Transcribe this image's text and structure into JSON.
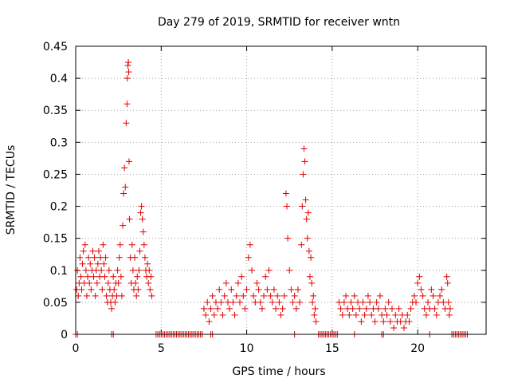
{
  "chart_data": {
    "type": "scatter",
    "title": "Day 279 of 2019, SRMTID for receiver wntn",
    "xlabel": "GPS time / hours",
    "ylabel": "SRMTID / TECUs",
    "xlim": [
      0,
      24
    ],
    "ylim": [
      0,
      0.45
    ],
    "xticks": [
      0,
      5,
      10,
      15,
      20
    ],
    "xtick_labels": [
      "0",
      "5",
      "10",
      "15",
      "20"
    ],
    "yticks": [
      0,
      0.05,
      0.1,
      0.15,
      0.2,
      0.25,
      0.3,
      0.35,
      0.4,
      0.45
    ],
    "ytick_labels": [
      "0",
      "0.05",
      "0.1",
      "0.15",
      "0.2",
      "0.25",
      "0.3",
      "0.35",
      "0.4",
      "0.45"
    ],
    "grid": true,
    "marker": "plus",
    "marker_color": "#e00000",
    "series": [
      {
        "name": "SRMTID",
        "points": [
          [
            0.05,
            0.07
          ],
          [
            0.1,
            0.1
          ],
          [
            0.15,
            0.06
          ],
          [
            0.2,
            0.08
          ],
          [
            0.25,
            0.12
          ],
          [
            0.3,
            0.09
          ],
          [
            0.35,
            0.07
          ],
          [
            0.4,
            0.11
          ],
          [
            0.45,
            0.13
          ],
          [
            0.5,
            0.08
          ],
          [
            0.55,
            0.14
          ],
          [
            0.6,
            0.1
          ],
          [
            0.65,
            0.06
          ],
          [
            0.7,
            0.09
          ],
          [
            0.75,
            0.12
          ],
          [
            0.8,
            0.08
          ],
          [
            0.85,
            0.11
          ],
          [
            0.9,
            0.07
          ],
          [
            0.95,
            0.1
          ],
          [
            1.0,
            0.13
          ],
          [
            1.05,
            0.09
          ],
          [
            1.1,
            0.12
          ],
          [
            1.15,
            0.06
          ],
          [
            1.2,
            0.1
          ],
          [
            1.25,
            0.08
          ],
          [
            1.3,
            0.11
          ],
          [
            1.35,
            0.13
          ],
          [
            1.4,
            0.09
          ],
          [
            1.45,
            0.12
          ],
          [
            1.5,
            0.1
          ],
          [
            1.55,
            0.07
          ],
          [
            1.6,
            0.14
          ],
          [
            1.65,
            0.11
          ],
          [
            1.7,
            0.09
          ],
          [
            1.75,
            0.12
          ],
          [
            1.8,
            0.06
          ],
          [
            1.85,
            0.05
          ],
          [
            1.9,
            0.08
          ],
          [
            1.95,
            0.1
          ],
          [
            2.0,
            0.07
          ],
          [
            2.05,
            0.05
          ],
          [
            2.1,
            0.04
          ],
          [
            2.15,
            0.06
          ],
          [
            2.2,
            0.09
          ],
          [
            2.25,
            0.07
          ],
          [
            2.3,
            0.05
          ],
          [
            2.35,
            0.08
          ],
          [
            2.4,
            0.06
          ],
          [
            2.45,
            0.1
          ],
          [
            2.5,
            0.08
          ],
          [
            2.55,
            0.12
          ],
          [
            2.6,
            0.14
          ],
          [
            2.65,
            0.09
          ],
          [
            2.7,
            0.06
          ],
          [
            2.75,
            0.17
          ],
          [
            2.8,
            0.22
          ],
          [
            2.85,
            0.26
          ],
          [
            2.9,
            0.23
          ],
          [
            2.95,
            0.33
          ],
          [
            3.0,
            0.36
          ],
          [
            3.02,
            0.4
          ],
          [
            3.05,
            0.42
          ],
          [
            3.08,
            0.425
          ],
          [
            3.1,
            0.41
          ],
          [
            3.12,
            0.27
          ],
          [
            3.15,
            0.18
          ],
          [
            3.2,
            0.12
          ],
          [
            3.25,
            0.08
          ],
          [
            3.3,
            0.14
          ],
          [
            3.35,
            0.1
          ],
          [
            3.4,
            0.07
          ],
          [
            3.45,
            0.12
          ],
          [
            3.5,
            0.08
          ],
          [
            3.55,
            0.06
          ],
          [
            3.6,
            0.09
          ],
          [
            3.65,
            0.07
          ],
          [
            3.7,
            0.1
          ],
          [
            3.75,
            0.13
          ],
          [
            3.8,
            0.19
          ],
          [
            3.85,
            0.2
          ],
          [
            3.9,
            0.18
          ],
          [
            3.95,
            0.16
          ],
          [
            4.0,
            0.14
          ],
          [
            4.05,
            0.12
          ],
          [
            4.1,
            0.1
          ],
          [
            4.15,
            0.09
          ],
          [
            4.2,
            0.11
          ],
          [
            4.25,
            0.08
          ],
          [
            4.3,
            0.1
          ],
          [
            4.35,
            0.07
          ],
          [
            4.4,
            0.09
          ],
          [
            4.45,
            0.06
          ],
          [
            7.5,
            0.04
          ],
          [
            7.6,
            0.03
          ],
          [
            7.7,
            0.05
          ],
          [
            7.8,
            0.02
          ],
          [
            7.9,
            0.04
          ],
          [
            8.0,
            0.06
          ],
          [
            8.1,
            0.03
          ],
          [
            8.2,
            0.05
          ],
          [
            8.3,
            0.04
          ],
          [
            8.4,
            0.07
          ],
          [
            8.5,
            0.05
          ],
          [
            8.6,
            0.03
          ],
          [
            8.7,
            0.06
          ],
          [
            8.8,
            0.08
          ],
          [
            8.9,
            0.05
          ],
          [
            9.0,
            0.04
          ],
          [
            9.1,
            0.07
          ],
          [
            9.2,
            0.05
          ],
          [
            9.3,
            0.03
          ],
          [
            9.4,
            0.06
          ],
          [
            9.5,
            0.08
          ],
          [
            9.6,
            0.05
          ],
          [
            9.7,
            0.09
          ],
          [
            9.8,
            0.06
          ],
          [
            9.9,
            0.04
          ],
          [
            10.0,
            0.07
          ],
          [
            10.1,
            0.12
          ],
          [
            10.2,
            0.14
          ],
          [
            10.3,
            0.1
          ],
          [
            10.4,
            0.06
          ],
          [
            10.5,
            0.05
          ],
          [
            10.6,
            0.08
          ],
          [
            10.7,
            0.07
          ],
          [
            10.8,
            0.05
          ],
          [
            10.9,
            0.04
          ],
          [
            11.0,
            0.06
          ],
          [
            11.1,
            0.09
          ],
          [
            11.2,
            0.07
          ],
          [
            11.3,
            0.1
          ],
          [
            11.4,
            0.06
          ],
          [
            11.5,
            0.05
          ],
          [
            11.6,
            0.07
          ],
          [
            11.7,
            0.04
          ],
          [
            11.8,
            0.06
          ],
          [
            11.9,
            0.05
          ],
          [
            12.0,
            0.03
          ],
          [
            12.1,
            0.04
          ],
          [
            12.2,
            0.06
          ],
          [
            12.3,
            0.22
          ],
          [
            12.35,
            0.2
          ],
          [
            12.4,
            0.15
          ],
          [
            12.5,
            0.1
          ],
          [
            12.6,
            0.07
          ],
          [
            12.7,
            0.05
          ],
          [
            12.8,
            0.06
          ],
          [
            12.9,
            0.04
          ],
          [
            13.0,
            0.07
          ],
          [
            13.1,
            0.05
          ],
          [
            13.2,
            0.14
          ],
          [
            13.25,
            0.2
          ],
          [
            13.3,
            0.25
          ],
          [
            13.35,
            0.29
          ],
          [
            13.4,
            0.27
          ],
          [
            13.45,
            0.21
          ],
          [
            13.5,
            0.18
          ],
          [
            13.55,
            0.15
          ],
          [
            13.6,
            0.19
          ],
          [
            13.65,
            0.13
          ],
          [
            13.7,
            0.09
          ],
          [
            13.75,
            0.12
          ],
          [
            13.8,
            0.08
          ],
          [
            13.85,
            0.05
          ],
          [
            13.9,
            0.06
          ],
          [
            13.95,
            0.03
          ],
          [
            14.0,
            0.04
          ],
          [
            14.05,
            0.02
          ],
          [
            15.4,
            0.05
          ],
          [
            15.5,
            0.04
          ],
          [
            15.6,
            0.03
          ],
          [
            15.7,
            0.05
          ],
          [
            15.8,
            0.06
          ],
          [
            15.9,
            0.04
          ],
          [
            16.0,
            0.03
          ],
          [
            16.1,
            0.05
          ],
          [
            16.2,
            0.04
          ],
          [
            16.3,
            0.06
          ],
          [
            16.4,
            0.03
          ],
          [
            16.5,
            0.05
          ],
          [
            16.6,
            0.04
          ],
          [
            16.7,
            0.02
          ],
          [
            16.8,
            0.05
          ],
          [
            16.9,
            0.03
          ],
          [
            17.0,
            0.04
          ],
          [
            17.1,
            0.06
          ],
          [
            17.2,
            0.05
          ],
          [
            17.3,
            0.03
          ],
          [
            17.4,
            0.04
          ],
          [
            17.5,
            0.02
          ],
          [
            17.6,
            0.05
          ],
          [
            17.7,
            0.04
          ],
          [
            17.8,
            0.06
          ],
          [
            17.9,
            0.03
          ],
          [
            18.0,
            0.02
          ],
          [
            18.1,
            0.04
          ],
          [
            18.2,
            0.03
          ],
          [
            18.3,
            0.05
          ],
          [
            18.4,
            0.02
          ],
          [
            18.5,
            0.04
          ],
          [
            18.6,
            0.01
          ],
          [
            18.7,
            0.03
          ],
          [
            18.8,
            0.02
          ],
          [
            18.9,
            0.04
          ],
          [
            19.0,
            0.02
          ],
          [
            19.1,
            0.03
          ],
          [
            19.2,
            0.01
          ],
          [
            19.3,
            0.02
          ],
          [
            19.4,
            0.03
          ],
          [
            19.5,
            0.02
          ],
          [
            19.6,
            0.04
          ],
          [
            19.7,
            0.05
          ],
          [
            19.8,
            0.06
          ],
          [
            19.9,
            0.05
          ],
          [
            20.0,
            0.08
          ],
          [
            20.1,
            0.09
          ],
          [
            20.2,
            0.07
          ],
          [
            20.3,
            0.06
          ],
          [
            20.4,
            0.04
          ],
          [
            20.5,
            0.03
          ],
          [
            20.6,
            0.05
          ],
          [
            20.7,
            0.04
          ],
          [
            20.8,
            0.07
          ],
          [
            20.9,
            0.06
          ],
          [
            21.0,
            0.04
          ],
          [
            21.1,
            0.03
          ],
          [
            21.2,
            0.05
          ],
          [
            21.3,
            0.06
          ],
          [
            21.4,
            0.07
          ],
          [
            21.5,
            0.05
          ],
          [
            21.6,
            0.04
          ],
          [
            21.7,
            0.09
          ],
          [
            21.75,
            0.08
          ],
          [
            21.8,
            0.05
          ],
          [
            21.85,
            0.03
          ],
          [
            21.9,
            0.04
          ],
          [
            0.0,
            0.0
          ],
          [
            0.1,
            0.0
          ],
          [
            2.1,
            0.0
          ],
          [
            2.2,
            0.0
          ],
          [
            4.7,
            0.0
          ],
          [
            4.8,
            0.0
          ],
          [
            4.9,
            0.0
          ],
          [
            5.0,
            0.0
          ],
          [
            5.1,
            0.0
          ],
          [
            5.2,
            0.0
          ],
          [
            5.3,
            0.0
          ],
          [
            5.4,
            0.0
          ],
          [
            5.5,
            0.0
          ],
          [
            5.6,
            0.0
          ],
          [
            5.7,
            0.0
          ],
          [
            5.8,
            0.0
          ],
          [
            5.9,
            0.0
          ],
          [
            6.0,
            0.0
          ],
          [
            6.1,
            0.0
          ],
          [
            6.2,
            0.0
          ],
          [
            6.3,
            0.0
          ],
          [
            6.4,
            0.0
          ],
          [
            6.5,
            0.0
          ],
          [
            6.6,
            0.0
          ],
          [
            6.7,
            0.0
          ],
          [
            6.8,
            0.0
          ],
          [
            6.9,
            0.0
          ],
          [
            7.0,
            0.0
          ],
          [
            7.1,
            0.0
          ],
          [
            7.2,
            0.0
          ],
          [
            7.3,
            0.0
          ],
          [
            7.4,
            0.0
          ],
          [
            7.9,
            0.0
          ],
          [
            8.0,
            0.0
          ],
          [
            12.8,
            0.0
          ],
          [
            14.2,
            0.0
          ],
          [
            14.3,
            0.0
          ],
          [
            14.4,
            0.0
          ],
          [
            14.5,
            0.0
          ],
          [
            14.6,
            0.0
          ],
          [
            14.7,
            0.0
          ],
          [
            14.8,
            0.0
          ],
          [
            14.9,
            0.0
          ],
          [
            15.0,
            0.0
          ],
          [
            15.1,
            0.0
          ],
          [
            15.2,
            0.0
          ],
          [
            15.3,
            0.0
          ],
          [
            16.3,
            0.0
          ],
          [
            17.9,
            0.0
          ],
          [
            18.0,
            0.0
          ],
          [
            20.7,
            0.0
          ],
          [
            22.0,
            0.0
          ],
          [
            22.1,
            0.0
          ],
          [
            22.2,
            0.0
          ],
          [
            22.3,
            0.0
          ],
          [
            22.4,
            0.0
          ],
          [
            22.5,
            0.0
          ],
          [
            22.6,
            0.0
          ],
          [
            22.7,
            0.0
          ],
          [
            22.8,
            0.0
          ],
          [
            22.9,
            0.0
          ]
        ]
      }
    ]
  }
}
